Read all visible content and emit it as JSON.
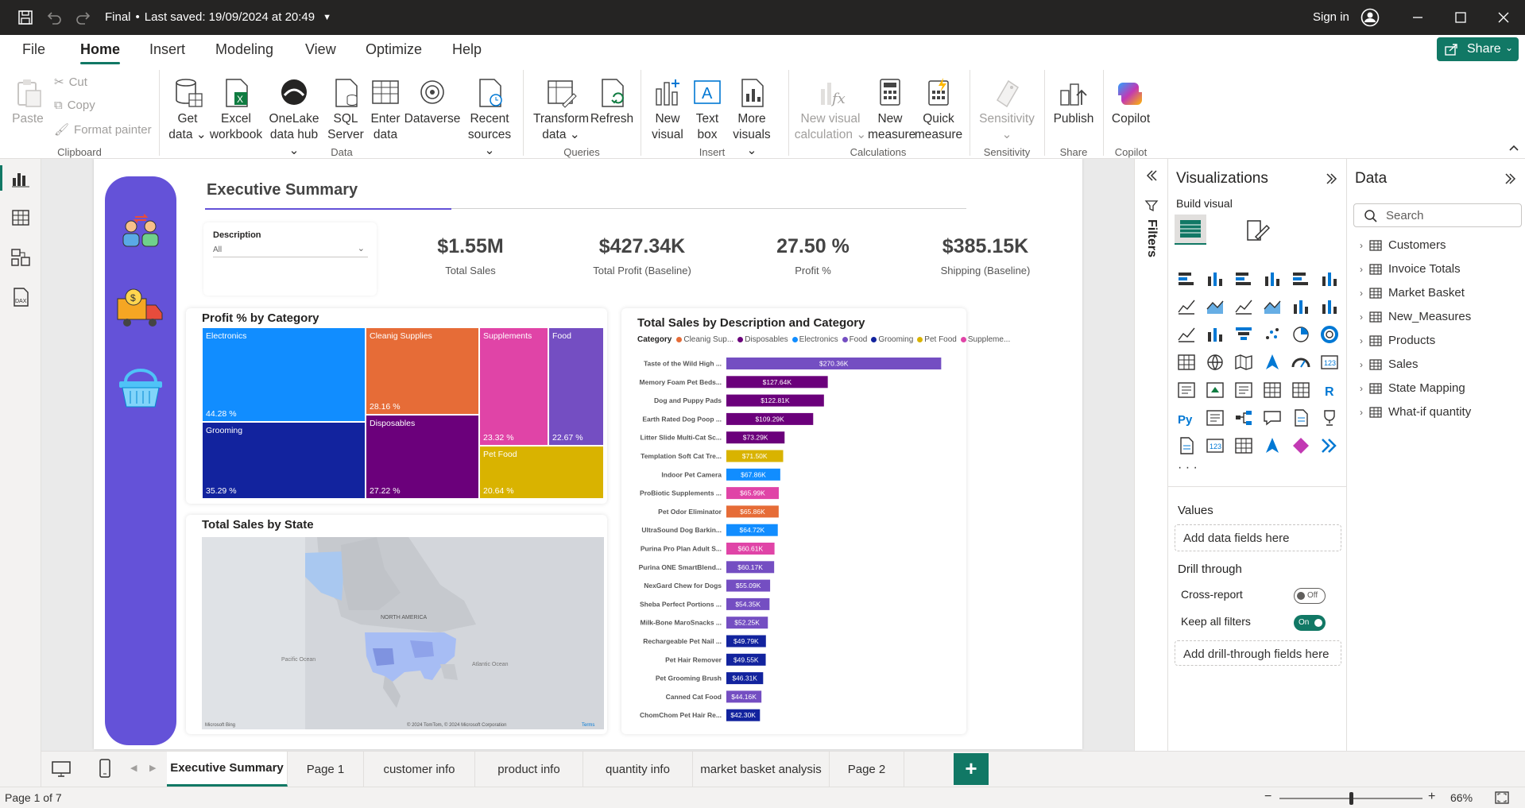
{
  "titlebar": {
    "doc_name": "Final",
    "saved": "Last saved: 19/09/2024 at 20:49",
    "sign_in": "Sign in"
  },
  "menu": {
    "tabs": [
      "File",
      "Home",
      "Insert",
      "Modeling",
      "View",
      "Optimize",
      "Help"
    ],
    "active": "Home",
    "share": "Share"
  },
  "ribbon": {
    "clipboard": {
      "paste": "Paste",
      "cut": "Cut",
      "copy": "Copy",
      "format_painter": "Format painter",
      "group": "Clipboard"
    },
    "data": {
      "get_data": [
        "Get",
        "data"
      ],
      "excel": [
        "Excel",
        "workbook"
      ],
      "onelake": [
        "OneLake",
        "data hub"
      ],
      "sql": [
        "SQL",
        "Server"
      ],
      "enter": [
        "Enter",
        "data"
      ],
      "dataverse": "Dataverse",
      "recent": [
        "Recent",
        "sources"
      ],
      "group": "Data"
    },
    "queries": {
      "transform": [
        "Transform",
        "data"
      ],
      "refresh": "Refresh",
      "group": "Queries"
    },
    "insert": {
      "new_visual": [
        "New",
        "visual"
      ],
      "text_box": [
        "Text",
        "box"
      ],
      "more_visuals": [
        "More",
        "visuals"
      ],
      "group": "Insert"
    },
    "calculations": {
      "new_visual_calc": [
        "New visual",
        "calculation"
      ],
      "new_measure": [
        "New",
        "measure"
      ],
      "quick_measure": [
        "Quick",
        "measure"
      ],
      "group": "Calculations"
    },
    "sensitivity": {
      "label": "Sensitivity",
      "group": "Sensitivity"
    },
    "share": {
      "publish": "Publish",
      "group": "Share"
    },
    "copilot": {
      "label": "Copilot",
      "group": "Copilot"
    }
  },
  "report": {
    "title": "Executive Summary",
    "slicer": {
      "label": "Description",
      "value": "All"
    },
    "kpis": [
      {
        "value": "$1.55M",
        "label": "Total Sales"
      },
      {
        "value": "$427.34K",
        "label": "Total Profit (Baseline)"
      },
      {
        "value": "27.50 %",
        "label": "Profit %"
      },
      {
        "value": "$385.15K",
        "label": "Shipping (Baseline)"
      }
    ],
    "treemap": {
      "title": "Profit % by Category",
      "tiles": [
        {
          "name": "Electronics",
          "pct": "44.28 %",
          "color": "#118dff"
        },
        {
          "name": "Grooming",
          "pct": "35.29 %",
          "color": "#12239e"
        },
        {
          "name": "Cleanig Supplies",
          "pct": "28.16 %",
          "color": "#e66c37"
        },
        {
          "name": "Disposables",
          "pct": "27.22 %",
          "color": "#6b007b"
        },
        {
          "name": "Supplements",
          "pct": "23.32 %",
          "color": "#e044a7"
        },
        {
          "name": "Food",
          "pct": "22.67 %",
          "color": "#744ec2"
        },
        {
          "name": "Pet Food",
          "pct": "20.64 %",
          "color": "#d9b300"
        }
      ]
    },
    "map": {
      "title": "Total Sales by State",
      "labels": {
        "north_america": "NORTH AMERICA",
        "pacific": "Pacific Ocean",
        "atlantic": "Atlantic Ocean"
      },
      "attribution": "© 2024 TomTom, © 2024 Microsoft Corporation",
      "terms": "Terms",
      "logo": "Microsoft Bing"
    },
    "bar_chart": {
      "title": "Total Sales by Description and Category",
      "legend_title": "Category",
      "legend": [
        {
          "name": "Cleanig Sup...",
          "color": "#e66c37"
        },
        {
          "name": "Disposables",
          "color": "#6b007b"
        },
        {
          "name": "Electronics",
          "color": "#118dff"
        },
        {
          "name": "Food",
          "color": "#744ec2"
        },
        {
          "name": "Grooming",
          "color": "#12239e"
        },
        {
          "name": "Pet Food",
          "color": "#d9b300"
        },
        {
          "name": "Suppleme...",
          "color": "#e044a7"
        }
      ]
    }
  },
  "chart_data": {
    "type": "bar",
    "title": "Total Sales by Description and Category",
    "orientation": "horizontal",
    "categories": [
      "Taste of the Wild High ...",
      "Memory Foam Pet Beds...",
      "Dog and Puppy Pads",
      "Earth Rated Dog Poop ...",
      "Litter Slide Multi-Cat Sc...",
      "Templation Soft Cat Tre...",
      "Indoor Pet Camera",
      "ProBiotic Supplements ...",
      "Pet Odor Eliminator",
      "UltraSound Dog Barkin...",
      "Purina Pro Plan Adult S...",
      "Purina ONE SmartBlend...",
      "NexGard Chew for Dogs",
      "Sheba Perfect Portions ...",
      "Milk-Bone MaroSnacks ...",
      "Rechargeable Pet Nail ...",
      "Pet Hair Remover",
      "Pet Grooming Brush",
      "Canned Cat Food",
      "ChomChom Pet Hair Re..."
    ],
    "values": [
      270.36,
      127.64,
      122.81,
      109.29,
      73.29,
      71.5,
      67.86,
      65.99,
      65.86,
      64.72,
      60.61,
      60.17,
      55.09,
      54.35,
      52.25,
      49.79,
      49.55,
      46.31,
      44.16,
      42.3
    ],
    "labels": [
      "$270.36K",
      "$127.64K",
      "$122.81K",
      "$109.29K",
      "$73.29K",
      "$71.50K",
      "$67.86K",
      "$65.99K",
      "$65.86K",
      "$64.72K",
      "$60.61K",
      "$60.17K",
      "$55.09K",
      "$54.35K",
      "$52.25K",
      "$49.79K",
      "$49.55K",
      "$46.31K",
      "$44.16K",
      "$42.30K"
    ],
    "series_category": [
      "Food",
      "Disposables",
      "Disposables",
      "Disposables",
      "Disposables",
      "Pet Food",
      "Electronics",
      "Supplements",
      "Cleanig Supplies",
      "Electronics",
      "Supplements",
      "Food",
      "Food",
      "Food",
      "Food",
      "Grooming",
      "Grooming",
      "Grooming",
      "Food",
      "Grooming"
    ],
    "colors": [
      "#744ec2",
      "#6b007b",
      "#6b007b",
      "#6b007b",
      "#6b007b",
      "#d9b300",
      "#118dff",
      "#e044a7",
      "#e66c37",
      "#118dff",
      "#e044a7",
      "#744ec2",
      "#744ec2",
      "#744ec2",
      "#744ec2",
      "#12239e",
      "#12239e",
      "#12239e",
      "#744ec2",
      "#12239e"
    ],
    "xlim": [
      0,
      290
    ]
  },
  "filters": {
    "label": "Filters"
  },
  "visualizations": {
    "title": "Visualizations",
    "build": "Build visual",
    "values": "Values",
    "add_data": "Add data fields here",
    "drill": "Drill through",
    "cross_report": "Cross-report",
    "cross_state": "Off",
    "keep_filters": "Keep all filters",
    "keep_state": "On",
    "add_drill": "Add drill-through fields here",
    "more": "· · ·"
  },
  "data_pane": {
    "title": "Data",
    "search": "Search",
    "tables": [
      "Customers",
      "Invoice Totals",
      "Market Basket",
      "New_Measures",
      "Products",
      "Sales",
      "State Mapping",
      "What-if quantity"
    ]
  },
  "page_tabs": {
    "tabs": [
      "Executive Summary",
      "Page 1",
      "customer info",
      "product info",
      "quantity info",
      "market basket analysis",
      "Page 2"
    ],
    "add": "+"
  },
  "status": {
    "page": "Page 1 of 7",
    "zoom": "66%",
    "minus": "−",
    "plus": "+"
  }
}
